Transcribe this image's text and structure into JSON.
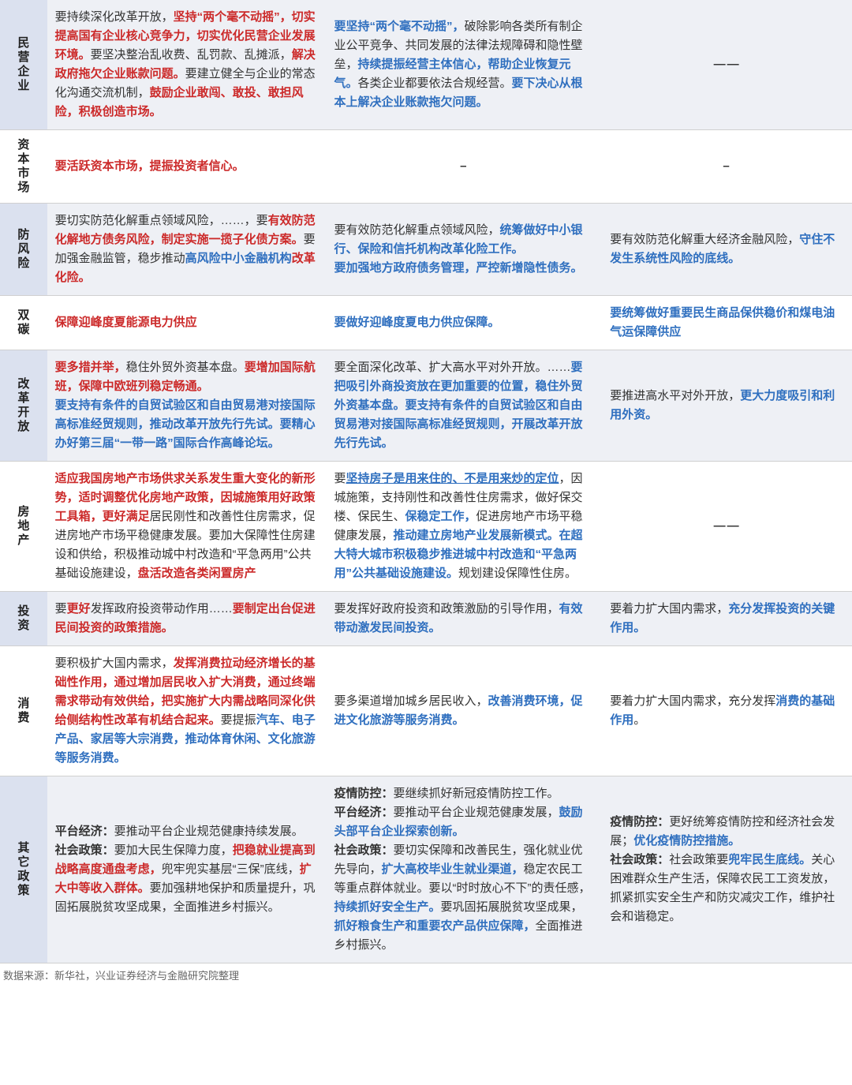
{
  "colors": {
    "red": "#cc2a2a",
    "blue": "#2f6fbf",
    "black": "#333333",
    "shaded_row_bg": "#eef0f5",
    "shaded_label_bg": "#dbe1ef",
    "border": "#d0d0d0"
  },
  "source_text": "数据来源：新华社，兴业证券经济与金融研究院整理",
  "rows": [
    {
      "id": "row-minqi",
      "shaded": true,
      "label": "民营企业",
      "c1": [
        {
          "t": "要持续深化改革开放，",
          "c": "black"
        },
        {
          "t": "坚持“两个毫不动摇”，切实提高国有企业核心竞争力，切实优化民营企业发展环境。",
          "c": "red"
        },
        {
          "t": "要坚决整治乱收费、乱罚款、乱摊派，",
          "c": "black"
        },
        {
          "t": "解决政府拖欠企业账款问题。",
          "c": "red"
        },
        {
          "t": "要建立健全与企业的常态化沟通交流机制，",
          "c": "black"
        },
        {
          "t": "鼓励企业敢闯、敢投、敢担风险，积极创造市场。",
          "c": "red"
        }
      ],
      "c2": [
        {
          "t": "要坚持“两个毫不动摇”，",
          "c": "blue"
        },
        {
          "t": "破除影响各类所有制企业公平竞争、共同发展的法律法规障碍和隐性壁垒，",
          "c": "black"
        },
        {
          "t": "持续提振经营主体信心，帮助企业恢复元气。",
          "c": "blue"
        },
        {
          "t": "各类企业都要依法合规经营。",
          "c": "black"
        },
        {
          "t": "要下决心从根本上解决企业账款拖欠问题。",
          "c": "blue"
        }
      ],
      "c3": [
        {
          "t": "——",
          "c": "black",
          "dash": true
        }
      ]
    },
    {
      "id": "row-ziben",
      "shaded": false,
      "label": "资本市场",
      "c1": [
        {
          "t": "要活跃资本市场，提振投资者信心。",
          "c": "red"
        }
      ],
      "c2": [
        {
          "t": "–",
          "c": "black",
          "dash": true
        }
      ],
      "c3": [
        {
          "t": "–",
          "c": "black",
          "dash": true
        }
      ]
    },
    {
      "id": "row-fangfengxian",
      "shaded": true,
      "label": "防风险",
      "c1": [
        {
          "t": "要切实防范化解重点领域风险，……，要",
          "c": "black"
        },
        {
          "t": "有效防范化解地方债务风险，制定实施一揽子化债方案。",
          "c": "red"
        },
        {
          "t": "要加强金融监管，稳步推动",
          "c": "black"
        },
        {
          "t": "高风险中小金融机构",
          "c": "blue"
        },
        {
          "t": "改革化险。",
          "c": "red"
        }
      ],
      "c2": [
        {
          "t": "要有效防范化解重点领域风险，",
          "c": "black"
        },
        {
          "t": "统筹做好中小银行、保险和信托机构改革化险工作。",
          "c": "blue"
        },
        {
          "t": "\n",
          "c": "black"
        },
        {
          "t": "要加强地方政府债务管理，",
          "c": "blue"
        },
        {
          "t": "严控新增隐性债务。",
          "c": "blue"
        }
      ],
      "c3": [
        {
          "t": "要有效防范化解重大经济金融风险，",
          "c": "black"
        },
        {
          "t": "守住不发生系统性风险的底线。",
          "c": "blue"
        }
      ]
    },
    {
      "id": "row-shuangtan",
      "shaded": false,
      "label": "双碳",
      "c1": [
        {
          "t": "保障迎峰度夏能源电力供应",
          "c": "red"
        }
      ],
      "c2": [
        {
          "t": "要做好迎峰度夏电力供应保障。",
          "c": "blue"
        }
      ],
      "c3": [
        {
          "t": "要统筹做好重要民生商品保供稳价和煤电油气运保障供应",
          "c": "blue"
        }
      ]
    },
    {
      "id": "row-gaigekaifang",
      "shaded": true,
      "label": "改革开放",
      "c1": [
        {
          "t": "要多措并举，",
          "c": "red"
        },
        {
          "t": "稳住外贸外资基本盘。",
          "c": "black"
        },
        {
          "t": "要增加国际航班，保障中欧班列稳定畅通。",
          "c": "red"
        },
        {
          "t": "\n",
          "c": "black"
        },
        {
          "t": "要支持有条件的自贸试验区和自由贸易港对接国际高标准经贸规则，推动改革开放先行先试。要精心办好第三届“一带一路”国际合作高峰论坛。",
          "c": "blue"
        }
      ],
      "c2": [
        {
          "t": "要全面深化改革、扩大高水平对外开放。……",
          "c": "black"
        },
        {
          "t": "要把吸引外商投资放在更加重要的位置，稳住外贸外资基本盘。要支持有条件的自贸试验区和自由贸易港对接国际高标准经贸规则，开展改革开放先行先试。",
          "c": "blue"
        }
      ],
      "c3": [
        {
          "t": "要推进高水平对外开放，",
          "c": "black"
        },
        {
          "t": "更大力度吸引和利用外资。",
          "c": "blue"
        }
      ]
    },
    {
      "id": "row-fangdichan",
      "shaded": false,
      "label": "房地产",
      "c1": [
        {
          "t": "适应我国房地产市场供求关系发生重大变化的新形势，适时调整优化房地产政策，因城施策用好政策工具箱，更好满足",
          "c": "red"
        },
        {
          "t": "居民刚性和改善性住房需求，促进房地产市场平稳健康发展。",
          "c": "black"
        },
        {
          "t": "要加大保障性住房建设和供给，",
          "c": "black"
        },
        {
          "t": "积极推动城中村改造和“平急两用”公共基础设施建设，",
          "c": "black"
        },
        {
          "t": "盘活改造各类闲置房产",
          "c": "red"
        }
      ],
      "c2": [
        {
          "t": "要",
          "c": "black"
        },
        {
          "t": "坚持房子是用来住的、不是用来炒的定位",
          "c": "blue",
          "underline": true
        },
        {
          "t": "，因城施策，支持刚性和改善性住房需求，做好保交楼、保民生、",
          "c": "black"
        },
        {
          "t": "保稳定工作，",
          "c": "blue"
        },
        {
          "t": "促进房地产市场平稳健康发展，",
          "c": "black"
        },
        {
          "t": "推动建立房地产业发展新模式。在超大特大城市积极稳步推进城中村改造和“平急两用”公共基础设施建设。",
          "c": "blue"
        },
        {
          "t": "规划建设保障性住房。",
          "c": "black"
        }
      ],
      "c3": [
        {
          "t": "——",
          "c": "black",
          "dash": true
        }
      ]
    },
    {
      "id": "row-touzi",
      "shaded": true,
      "label": "投资",
      "c1": [
        {
          "t": "要",
          "c": "black"
        },
        {
          "t": "更好",
          "c": "red"
        },
        {
          "t": "发挥政府投资带动作用……",
          "c": "black"
        },
        {
          "t": "要制定出台促进民间投资的政策措施。",
          "c": "red"
        }
      ],
      "c2": [
        {
          "t": "要发挥好政府投资和政策激励的引导作用，",
          "c": "black"
        },
        {
          "t": "有效带动激发民间投资。",
          "c": "blue"
        }
      ],
      "c3": [
        {
          "t": "要着力扩大国内需求，",
          "c": "black"
        },
        {
          "t": "充分发挥投资的关键作用。",
          "c": "blue"
        }
      ]
    },
    {
      "id": "row-xiaofei",
      "shaded": false,
      "label": "消费",
      "c1": [
        {
          "t": "要积极扩大国内需求，",
          "c": "black"
        },
        {
          "t": "发挥消费拉动经济增长的基础性作用，通过增加居民收入扩大消费，通过终端需求带动有效供给，把实施扩大内需战略同深化供给侧结构性改革有机结合起来。",
          "c": "red"
        },
        {
          "t": "要提振",
          "c": "black"
        },
        {
          "t": "汽车、电子产品、家居等大宗消费，推动体育休闲、文化旅游等服务消费。",
          "c": "blue"
        }
      ],
      "c2": [
        {
          "t": "要多渠道增加城乡居民收入，",
          "c": "black"
        },
        {
          "t": "改善消费环境，促进文化旅游等服务消费。",
          "c": "blue"
        }
      ],
      "c3": [
        {
          "t": "要着力扩大国内需求，充分发挥",
          "c": "black"
        },
        {
          "t": "消费的基础作用",
          "c": "blue"
        },
        {
          "t": "。",
          "c": "black"
        }
      ]
    },
    {
      "id": "row-qita",
      "shaded": true,
      "label": "其它政策",
      "c1": [
        {
          "t": "平台经济：",
          "c": "black",
          "bold": true
        },
        {
          "t": "要推动平台企业规范健康持续发展。",
          "c": "black"
        },
        {
          "t": "\n",
          "c": "black"
        },
        {
          "t": "社会政策：",
          "c": "black",
          "bold": true
        },
        {
          "t": "要加大民生保障力度，",
          "c": "black"
        },
        {
          "t": "把稳就业提高到战略高度通盘考虑，",
          "c": "red"
        },
        {
          "t": "兜牢兜实基层“三保”底线，",
          "c": "black"
        },
        {
          "t": "扩大中等收入群体。",
          "c": "red"
        },
        {
          "t": "要加强耕地保护和质量提升，巩固拓展脱贫攻坚成果，全面推进乡村振兴。",
          "c": "black"
        }
      ],
      "c2": [
        {
          "t": "疫情防控：",
          "c": "black",
          "bold": true
        },
        {
          "t": "要继续抓好新冠疫情防控工作。",
          "c": "black"
        },
        {
          "t": "\n",
          "c": "black"
        },
        {
          "t": "平台经济：",
          "c": "black",
          "bold": true
        },
        {
          "t": "要推动平台企业规范健康发展，",
          "c": "black"
        },
        {
          "t": "鼓励头部平台企业探索创新。",
          "c": "blue"
        },
        {
          "t": "\n",
          "c": "black"
        },
        {
          "t": "社会政策：",
          "c": "black",
          "bold": true
        },
        {
          "t": "要切实保障和改善民生，强化就业优先导向，",
          "c": "black"
        },
        {
          "t": "扩大高校毕业生就业渠道，",
          "c": "blue"
        },
        {
          "t": "稳定农民工等重点群体就业。要以“时时放心不下”的责任感，",
          "c": "black"
        },
        {
          "t": "持续抓好安全生产。",
          "c": "blue"
        },
        {
          "t": "要巩固拓展脱贫攻坚成果，",
          "c": "black"
        },
        {
          "t": "抓好粮食生产和重要农产品供应保障，",
          "c": "blue"
        },
        {
          "t": "全面推进乡村振兴。",
          "c": "black"
        }
      ],
      "c3": [
        {
          "t": "疫情防控：",
          "c": "black",
          "bold": true
        },
        {
          "t": "更好统筹疫情防控和经济社会发展；",
          "c": "black"
        },
        {
          "t": "优化疫情防控措施。",
          "c": "blue"
        },
        {
          "t": "\n",
          "c": "black"
        },
        {
          "t": "社会政策：",
          "c": "black",
          "bold": true
        },
        {
          "t": "社会政策要",
          "c": "black"
        },
        {
          "t": "兜牢民生底线。",
          "c": "blue"
        },
        {
          "t": "关心困难群众生产生活，保障农民工工资发放，抓紧抓实安全生产和防灾减灾工作，维护社会和谐稳定。",
          "c": "black"
        }
      ]
    }
  ]
}
